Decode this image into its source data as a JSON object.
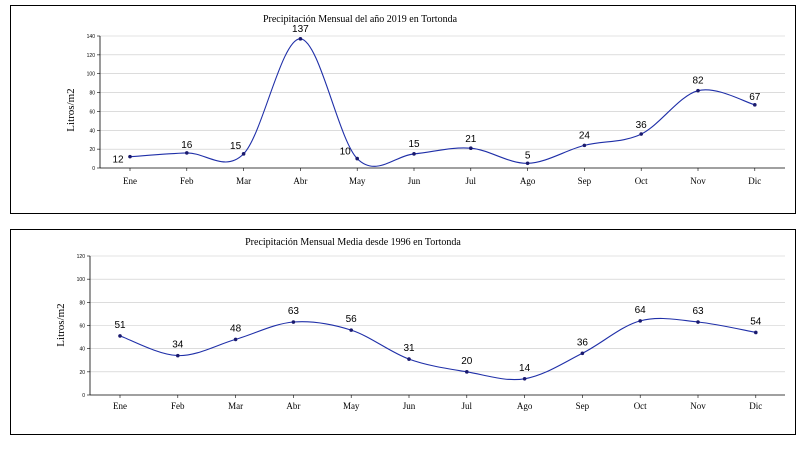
{
  "chart_data": [
    {
      "type": "line",
      "title": "Precipitación Mensual del año 2019 en Tortonda",
      "xlabel": "",
      "ylabel": "Litros/m2",
      "categories": [
        "Ene",
        "Feb",
        "Mar",
        "Abr",
        "May",
        "Jun",
        "Jul",
        "Ago",
        "Sep",
        "Oct",
        "Nov",
        "Dic"
      ],
      "series": [
        {
          "values": [
            12,
            16,
            15,
            137,
            10,
            15,
            21,
            5,
            24,
            36,
            82,
            67
          ]
        }
      ],
      "data_labels": [
        "12",
        "16",
        "15",
        "137",
        "10",
        "15",
        "21",
        "5",
        "24",
        "36",
        "82",
        "67"
      ],
      "yticks": [
        0,
        20,
        40,
        60,
        80,
        100,
        120,
        140
      ],
      "ylim": [
        0,
        140
      ],
      "grid": true,
      "smooth": true,
      "line_color": "#1f2fa8"
    },
    {
      "type": "line",
      "title": "Precipitación Mensual Media desde 1996 en Tortonda",
      "xlabel": "",
      "ylabel": "Litros/m2",
      "categories": [
        "Ene",
        "Feb",
        "Mar",
        "Abr",
        "May",
        "Jun",
        "Jul",
        "Ago",
        "Sep",
        "Oct",
        "Nov",
        "Dic"
      ],
      "series": [
        {
          "values": [
            51,
            34,
            48,
            63,
            56,
            31,
            20,
            14,
            36,
            64,
            63,
            54
          ]
        }
      ],
      "data_labels": [
        "51",
        "34",
        "48",
        "63",
        "56",
        "31",
        "20",
        "14",
        "36",
        "64",
        "63",
        "54"
      ],
      "yticks": [
        0,
        20,
        40,
        60,
        80,
        100,
        120
      ],
      "ylim": [
        0,
        120
      ],
      "grid": true,
      "smooth": true,
      "line_color": "#1f2fa8"
    }
  ]
}
